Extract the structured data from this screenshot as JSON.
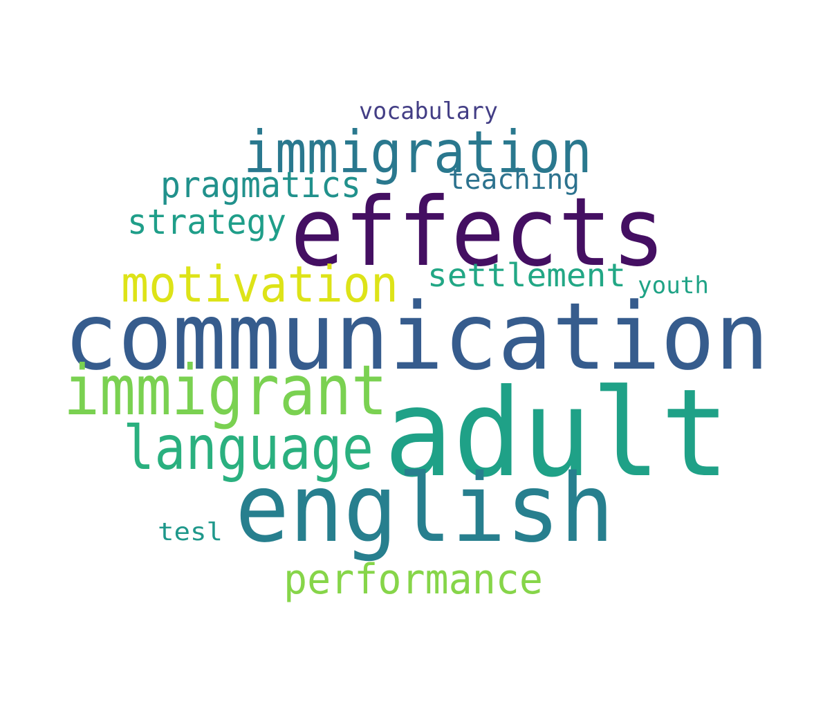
{
  "words": [
    {
      "text": "communication",
      "color": "#365c8d"
    },
    {
      "text": "adult",
      "color": "#1fa187"
    },
    {
      "text": "effects",
      "color": "#440f62"
    },
    {
      "text": "english",
      "color": "#277f8e"
    },
    {
      "text": "immigration",
      "color": "#2a788e"
    },
    {
      "text": "immigrant",
      "color": "#7ad151"
    },
    {
      "text": "language",
      "color": "#2ab07f"
    },
    {
      "text": "motivation",
      "color": "#dde318"
    },
    {
      "text": "performance",
      "color": "#86d549"
    },
    {
      "text": "pragmatics",
      "color": "#21918c"
    },
    {
      "text": "strategy",
      "color": "#1f9e89"
    },
    {
      "text": "settlement",
      "color": "#22a785"
    },
    {
      "text": "teaching",
      "color": "#2c728e"
    },
    {
      "text": "vocabulary",
      "color": "#433e85"
    },
    {
      "text": "youth",
      "color": "#20a386"
    },
    {
      "text": "tesl",
      "color": "#1f988b"
    }
  ]
}
